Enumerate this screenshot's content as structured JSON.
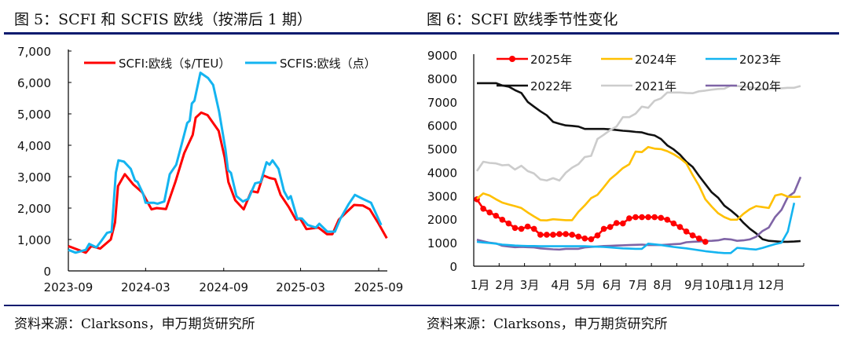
{
  "left": {
    "title": "图 5：SCFI 和 SCFIS 欧线（按滞后 1 期）",
    "source": "资料来源：Clarksons，申万期货研究所"
  },
  "right": {
    "title": "图 6：SCFI 欧线季节性变化",
    "source": "资料来源：Clarksons，申万期货研究所"
  },
  "colors": {
    "rule": "#0a1a6e"
  },
  "chart_data": [
    {
      "type": "line",
      "title": "",
      "xlabel": "",
      "ylabel": "",
      "ylim": [
        0,
        7000
      ],
      "yticks": [
        "0",
        "1,000",
        "2,000",
        "3,000",
        "4,000",
        "5,000",
        "6,000",
        "7,000"
      ],
      "ytick_values": [
        0,
        1000,
        2000,
        3000,
        4000,
        5000,
        6000,
        7000
      ],
      "xlim": [
        "2023-09-01",
        "2025-09-30"
      ],
      "xticks": [
        "2023-09",
        "2024-03",
        "2024-09",
        "2025-03",
        "2025-09"
      ],
      "grid": false,
      "legend": "top",
      "series": [
        {
          "name": "SCFI:欧线（$/TEU）",
          "color": "#ff0000",
          "x": [
            "2023-09-01",
            "2023-10-12",
            "2023-10-25",
            "2023-11-15",
            "2023-12-10",
            "2023-12-20",
            "2023-12-27",
            "2024-01-12",
            "2024-02-01",
            "2024-02-22",
            "2024-03-15",
            "2024-03-27",
            "2024-04-18",
            "2024-05-10",
            "2024-05-31",
            "2024-06-20",
            "2024-06-27",
            "2024-07-10",
            "2024-07-25",
            "2024-08-20",
            "2024-09-03",
            "2024-09-12",
            "2024-09-28",
            "2024-10-18",
            "2024-11-05",
            "2024-11-20",
            "2024-12-03",
            "2024-12-18",
            "2024-12-31",
            "2025-01-13",
            "2025-02-01",
            "2025-02-18",
            "2025-02-28",
            "2025-03-15",
            "2025-04-12",
            "2025-05-02",
            "2025-05-15",
            "2025-05-30",
            "2025-06-18",
            "2025-07-05",
            "2025-07-26",
            "2025-08-11",
            "2025-09-01",
            "2025-09-20"
          ],
          "values": [
            790,
            580,
            790,
            710,
            1000,
            1540,
            2700,
            3080,
            2750,
            2500,
            1960,
            2000,
            1970,
            2830,
            3750,
            4330,
            4880,
            5040,
            4960,
            4460,
            3620,
            2830,
            2250,
            1960,
            2540,
            2500,
            3040,
            2960,
            2920,
            2420,
            2040,
            1630,
            1670,
            1330,
            1380,
            1170,
            1170,
            1630,
            1880,
            2100,
            2080,
            1960,
            1500,
            1040
          ]
        },
        {
          "name": "SCFIS:欧线（点）",
          "color": "#14b4f0",
          "x": [
            "2023-09-01",
            "2023-09-18",
            "2023-10-12",
            "2023-10-20",
            "2023-11-06",
            "2023-11-18",
            "2023-12-01",
            "2023-12-12",
            "2023-12-22",
            "2023-12-28",
            "2024-01-10",
            "2024-01-26",
            "2024-02-05",
            "2024-02-11",
            "2024-02-24",
            "2024-03-01",
            "2024-03-20",
            "2024-03-29",
            "2024-04-14",
            "2024-04-27",
            "2024-05-12",
            "2024-05-25",
            "2024-06-07",
            "2024-06-13",
            "2024-06-18",
            "2024-06-24",
            "2024-07-08",
            "2024-07-26",
            "2024-08-07",
            "2024-08-21",
            "2024-09-05",
            "2024-09-11",
            "2024-09-18",
            "2024-10-01",
            "2024-10-16",
            "2024-10-29",
            "2024-11-14",
            "2024-11-27",
            "2024-12-11",
            "2024-12-18",
            "2024-12-25",
            "2025-01-08",
            "2025-01-21",
            "2025-01-31",
            "2025-02-06",
            "2025-02-21",
            "2025-03-04",
            "2025-03-18",
            "2025-04-06",
            "2025-04-14",
            "2025-05-03",
            "2025-05-21",
            "2025-06-03",
            "2025-06-22",
            "2025-07-07",
            "2025-07-26",
            "2025-08-14",
            "2025-09-07"
          ],
          "values": [
            670,
            580,
            670,
            860,
            750,
            960,
            1210,
            1250,
            3130,
            3520,
            3480,
            3250,
            2880,
            2830,
            2460,
            2170,
            2170,
            2140,
            2210,
            3080,
            3380,
            4040,
            4710,
            4780,
            5330,
            5420,
            6310,
            6140,
            5920,
            5080,
            3880,
            3210,
            3120,
            2380,
            2210,
            2290,
            2790,
            2830,
            3460,
            3380,
            3520,
            3250,
            2540,
            2290,
            2380,
            1670,
            1670,
            1460,
            1380,
            1500,
            1250,
            1250,
            1670,
            2120,
            2420,
            2290,
            2170,
            1460
          ]
        }
      ]
    },
    {
      "type": "line",
      "title": "",
      "xlabel": "",
      "ylabel": "",
      "ylim": [
        0,
        9000
      ],
      "yticks": [
        "0",
        "1000",
        "2000",
        "3000",
        "4000",
        "5000",
        "6000",
        "7000",
        "8000",
        "9000"
      ],
      "ytick_values": [
        0,
        1000,
        2000,
        3000,
        4000,
        5000,
        6000,
        7000,
        8000,
        9000
      ],
      "x_unit": "week",
      "xlim": [
        0.5,
        52.5
      ],
      "xticks": [
        "1月",
        "2月",
        "3月",
        "4月",
        "5月",
        "6月",
        "7月",
        "8月",
        "9月",
        "10月",
        "11月",
        "12月"
      ],
      "xtick_weeks": [
        1.5,
        5.4,
        9.3,
        14.2,
        18.2,
        22.3,
        26.4,
        30.3,
        35.2,
        39,
        42.6,
        47.4
      ],
      "grid": false,
      "legend": "top",
      "series": [
        {
          "name": "2025年",
          "color": "#ff0000",
          "markers": true,
          "values": [
            2850,
            2450,
            2290,
            2150,
            1980,
            1820,
            1630,
            1590,
            1690,
            1590,
            1340,
            1340,
            1340,
            1370,
            1370,
            1340,
            1260,
            1180,
            1150,
            1310,
            1590,
            1670,
            1840,
            1820,
            2040,
            2090,
            2090,
            2090,
            2090,
            2060,
            1980,
            1820,
            1670,
            1480,
            1310,
            1180,
            1040
          ]
        },
        {
          "name": "2024年",
          "color": "#ffc000",
          "values": [
            2870,
            3100,
            3010,
            2850,
            2710,
            2630,
            2560,
            2480,
            2290,
            2120,
            1960,
            1950,
            2000,
            1980,
            1960,
            1960,
            2320,
            2590,
            2900,
            3040,
            3370,
            3710,
            3930,
            4180,
            4340,
            4880,
            4860,
            5080,
            5010,
            4990,
            4900,
            4770,
            4600,
            4380,
            3880,
            3430,
            2850,
            2540,
            2260,
            2090,
            1980,
            1980,
            2230,
            2430,
            2560,
            2520,
            2480,
            3010,
            3070,
            2960,
            2950,
            2960
          ]
        },
        {
          "name": "2023年",
          "color": "#14b4f0",
          "values": [
            1040,
            1010,
            990,
            960,
            920,
            900,
            880,
            870,
            860,
            860,
            850,
            850,
            850,
            850,
            850,
            850,
            850,
            850,
            840,
            830,
            820,
            800,
            780,
            760,
            750,
            740,
            740,
            960,
            930,
            900,
            860,
            820,
            790,
            760,
            720,
            680,
            640,
            610,
            580,
            560,
            560,
            780,
            760,
            730,
            710,
            780,
            860,
            940,
            1000,
            1480,
            2700
          ]
        },
        {
          "name": "2022年",
          "color": "#111111",
          "values": [
            7800,
            7800,
            7800,
            7800,
            7700,
            7650,
            7500,
            7380,
            7000,
            6800,
            6600,
            6430,
            6150,
            6070,
            6000,
            5980,
            5950,
            5850,
            5850,
            5850,
            5850,
            5830,
            5800,
            5770,
            5750,
            5720,
            5700,
            5620,
            5570,
            5420,
            5150,
            4980,
            4750,
            4450,
            4230,
            3850,
            3500,
            3150,
            2920,
            2580,
            2380,
            2150,
            1850,
            1600,
            1400,
            1150,
            1080,
            1060,
            1040,
            1040,
            1050,
            1070
          ]
        },
        {
          "name": "2021年",
          "color": "#cccccc",
          "values": [
            4050,
            4450,
            4400,
            4380,
            4300,
            4320,
            4120,
            4280,
            4050,
            3950,
            3700,
            3650,
            3750,
            3650,
            3980,
            4200,
            4350,
            4650,
            4700,
            5420,
            5600,
            5800,
            5950,
            6350,
            6350,
            6500,
            6800,
            6750,
            7050,
            7150,
            7400,
            7400,
            7400,
            7380,
            7370,
            7450,
            7480,
            7520,
            7550,
            7560,
            7700,
            7680,
            7650,
            7620,
            7580,
            7550,
            7550,
            7560,
            7580,
            7600,
            7600,
            7680
          ]
        },
        {
          "name": "2020年",
          "color": "#7f64a6",
          "values": [
            1130,
            1060,
            1000,
            970,
            870,
            840,
            810,
            820,
            810,
            800,
            760,
            740,
            720,
            710,
            740,
            740,
            740,
            800,
            820,
            840,
            860,
            870,
            880,
            890,
            900,
            910,
            920,
            900,
            900,
            900,
            920,
            940,
            950,
            1020,
            1040,
            1050,
            1070,
            1080,
            1100,
            1160,
            1140,
            1080,
            1100,
            1140,
            1250,
            1500,
            1650,
            2100,
            2400,
            2950,
            3150,
            3800
          ]
        }
      ]
    }
  ]
}
